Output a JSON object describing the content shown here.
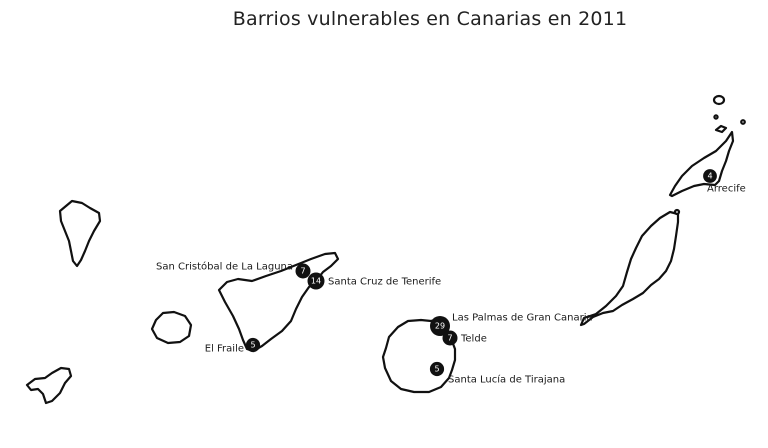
{
  "title": "Barrios vulnerables en Canarias en 2011",
  "colors": {
    "outline": "#111111",
    "marker": "#111111",
    "marker_text": "#ffffff",
    "background": "#ffffff"
  },
  "places": [
    {
      "id": "san-cristobal-de-la-laguna",
      "name": "San Cristóbal de La Laguna",
      "count": 7
    },
    {
      "id": "santa-cruz-de-tenerife",
      "name": "Santa Cruz de Tenerife",
      "count": 14
    },
    {
      "id": "el-fraile",
      "name": "El Fraile",
      "count": 5
    },
    {
      "id": "las-palmas-de-gran-canaria",
      "name": "Las Palmas de Gran Canaria",
      "count": 29
    },
    {
      "id": "telde",
      "name": "Telde",
      "count": 7
    },
    {
      "id": "santa-lucia-de-tirajana",
      "name": "Santa Lucía de Tirajana",
      "count": 5
    },
    {
      "id": "arrecife",
      "name": "Arrecife",
      "count": 4
    }
  ]
}
